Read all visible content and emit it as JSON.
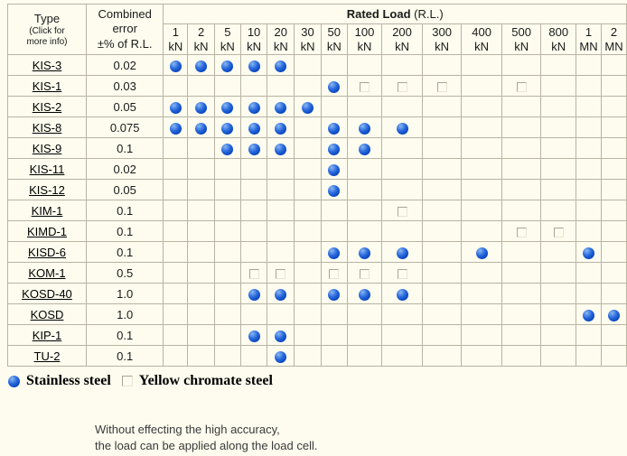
{
  "table": {
    "header": {
      "type_label": "Type",
      "type_note": "(Click for\nmore info)",
      "error_label": "Combined\nerror\n±% of R.L.",
      "rated_load_label": "Rated Load",
      "rated_load_suffix": "(R.L.)",
      "columns": [
        {
          "value": "1",
          "unit": "kN"
        },
        {
          "value": "2",
          "unit": "kN"
        },
        {
          "value": "5",
          "unit": "kN"
        },
        {
          "value": "10",
          "unit": "kN"
        },
        {
          "value": "20",
          "unit": "kN"
        },
        {
          "value": "30",
          "unit": "kN"
        },
        {
          "value": "50",
          "unit": "kN"
        },
        {
          "value": "100",
          "unit": "kN"
        },
        {
          "value": "200",
          "unit": "kN"
        },
        {
          "value": "300",
          "unit": "kN"
        },
        {
          "value": "400",
          "unit": "kN"
        },
        {
          "value": "500",
          "unit": "kN"
        },
        {
          "value": "800",
          "unit": "kN"
        },
        {
          "value": "1",
          "unit": "MN"
        },
        {
          "value": "2",
          "unit": "MN"
        }
      ]
    },
    "rows": [
      {
        "type": "KIS-3",
        "error": "0.02",
        "cells": [
          "dot",
          "dot",
          "dot",
          "dot",
          "dot",
          "",
          "",
          "",
          "",
          "",
          "",
          "",
          "",
          "",
          ""
        ]
      },
      {
        "type": "KIS-1",
        "error": "0.03",
        "cells": [
          "",
          "",
          "",
          "",
          "",
          "",
          "dot",
          "square",
          "square",
          "square",
          "",
          "square",
          "",
          "",
          ""
        ]
      },
      {
        "type": "KIS-2",
        "error": "0.05",
        "cells": [
          "dot",
          "dot",
          "dot",
          "dot",
          "dot",
          "dot",
          "",
          "",
          "",
          "",
          "",
          "",
          "",
          "",
          ""
        ]
      },
      {
        "type": "KIS-8",
        "error": "0.075",
        "cells": [
          "dot",
          "dot",
          "dot",
          "dot",
          "dot",
          "",
          "dot",
          "dot",
          "dot",
          "",
          "",
          "",
          "",
          "",
          ""
        ]
      },
      {
        "type": "KIS-9",
        "error": "0.1",
        "cells": [
          "",
          "",
          "dot",
          "dot",
          "dot",
          "",
          "dot",
          "dot",
          "",
          "",
          "",
          "",
          "",
          "",
          ""
        ]
      },
      {
        "type": "KIS-11",
        "error": "0.02",
        "cells": [
          "",
          "",
          "",
          "",
          "",
          "",
          "dot",
          "",
          "",
          "",
          "",
          "",
          "",
          "",
          ""
        ]
      },
      {
        "type": "KIS-12",
        "error": "0.05",
        "cells": [
          "",
          "",
          "",
          "",
          "",
          "",
          "dot",
          "",
          "",
          "",
          "",
          "",
          "",
          "",
          ""
        ]
      },
      {
        "type": "KIM-1",
        "error": "0.1",
        "cells": [
          "",
          "",
          "",
          "",
          "",
          "",
          "",
          "",
          "square",
          "",
          "",
          "",
          "",
          "",
          ""
        ]
      },
      {
        "type": "KIMD-1",
        "error": "0.1",
        "cells": [
          "",
          "",
          "",
          "",
          "",
          "",
          "",
          "",
          "",
          "",
          "",
          "square",
          "square",
          "",
          ""
        ]
      },
      {
        "type": "KISD-6",
        "error": "0.1",
        "cells": [
          "",
          "",
          "",
          "",
          "",
          "",
          "dot",
          "dot",
          "dot",
          "",
          "dot",
          "",
          "",
          "dot",
          ""
        ]
      },
      {
        "type": "KOM-1",
        "error": "0.5",
        "cells": [
          "",
          "",
          "",
          "square",
          "square",
          "",
          "square",
          "square",
          "square",
          "",
          "",
          "",
          "",
          "",
          ""
        ]
      },
      {
        "type": "KOSD-40",
        "error": "1.0",
        "cells": [
          "",
          "",
          "",
          "dot",
          "dot",
          "",
          "dot",
          "dot",
          "dot",
          "",
          "",
          "",
          "",
          "",
          ""
        ]
      },
      {
        "type": "KOSD",
        "error": "1.0",
        "cells": [
          "",
          "",
          "",
          "",
          "",
          "",
          "",
          "",
          "",
          "",
          "",
          "",
          "",
          "dot",
          "dot"
        ]
      },
      {
        "type": "KIP-1",
        "error": "0.1",
        "cells": [
          "",
          "",
          "",
          "dot",
          "dot",
          "",
          "",
          "",
          "",
          "",
          "",
          "",
          "",
          "",
          ""
        ]
      },
      {
        "type": "TU-2",
        "error": "0.1",
        "cells": [
          "",
          "",
          "",
          "",
          "dot",
          "",
          "",
          "",
          "",
          "",
          "",
          "",
          "",
          "",
          ""
        ]
      }
    ]
  },
  "legend": {
    "stainless_label": "Stainless steel",
    "chromate_label": "Yellow chromate steel"
  },
  "footer": {
    "line1": "Without effecting the high accuracy,",
    "line2": "the load can be applied along the load cell."
  },
  "colors": {
    "background": "#fdfcee",
    "grid_border": "#b9b4a4",
    "dot_blue": "#0a49c0",
    "text": "#1a1a1a"
  }
}
